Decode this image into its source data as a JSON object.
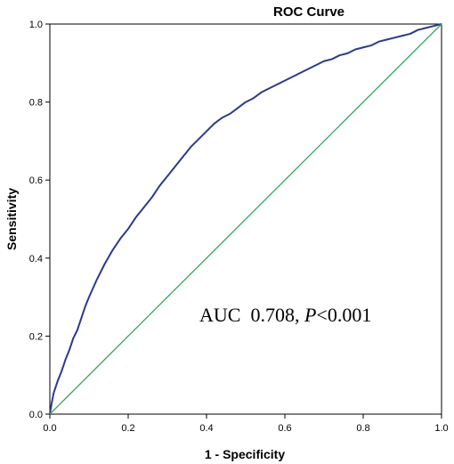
{
  "chart_data": {
    "type": "line",
    "title": "ROC Curve",
    "xlabel": "1 - Specificity",
    "ylabel": "Sensitivity",
    "xlim": [
      0.0,
      1.0
    ],
    "ylim": [
      0.0,
      1.0
    ],
    "x_ticks": [
      "0.0",
      "0.2",
      "0.4",
      "0.6",
      "0.8",
      "1.0"
    ],
    "y_ticks": [
      "0.0",
      "0.2",
      "0.4",
      "0.6",
      "0.8",
      "1.0"
    ],
    "grid": false,
    "annotation": {
      "prefix": "AUC  0.708, ",
      "italic": "P",
      "suffix": "<0.001"
    },
    "series": [
      {
        "color": "#2b3a8c",
        "x": [
          0.0,
          0.005,
          0.01,
          0.02,
          0.03,
          0.04,
          0.05,
          0.06,
          0.07,
          0.08,
          0.09,
          0.1,
          0.12,
          0.14,
          0.16,
          0.18,
          0.2,
          0.22,
          0.24,
          0.26,
          0.28,
          0.3,
          0.32,
          0.34,
          0.36,
          0.38,
          0.4,
          0.42,
          0.44,
          0.46,
          0.48,
          0.5,
          0.52,
          0.54,
          0.56,
          0.58,
          0.6,
          0.62,
          0.64,
          0.66,
          0.68,
          0.7,
          0.72,
          0.74,
          0.76,
          0.78,
          0.8,
          0.82,
          0.84,
          0.86,
          0.88,
          0.9,
          0.92,
          0.94,
          0.96,
          0.98,
          1.0
        ],
        "y": [
          0.0,
          0.03,
          0.055,
          0.085,
          0.11,
          0.14,
          0.165,
          0.195,
          0.215,
          0.245,
          0.275,
          0.3,
          0.345,
          0.385,
          0.42,
          0.45,
          0.475,
          0.505,
          0.53,
          0.555,
          0.585,
          0.61,
          0.635,
          0.66,
          0.685,
          0.705,
          0.725,
          0.745,
          0.76,
          0.77,
          0.785,
          0.8,
          0.81,
          0.825,
          0.835,
          0.845,
          0.855,
          0.865,
          0.875,
          0.885,
          0.895,
          0.905,
          0.91,
          0.92,
          0.925,
          0.935,
          0.94,
          0.945,
          0.955,
          0.96,
          0.965,
          0.97,
          0.975,
          0.985,
          0.99,
          0.995,
          1.0
        ]
      },
      {
        "color": "#3aa655",
        "x": [
          0.0,
          1.0
        ],
        "y": [
          0.0,
          1.0
        ]
      }
    ]
  }
}
